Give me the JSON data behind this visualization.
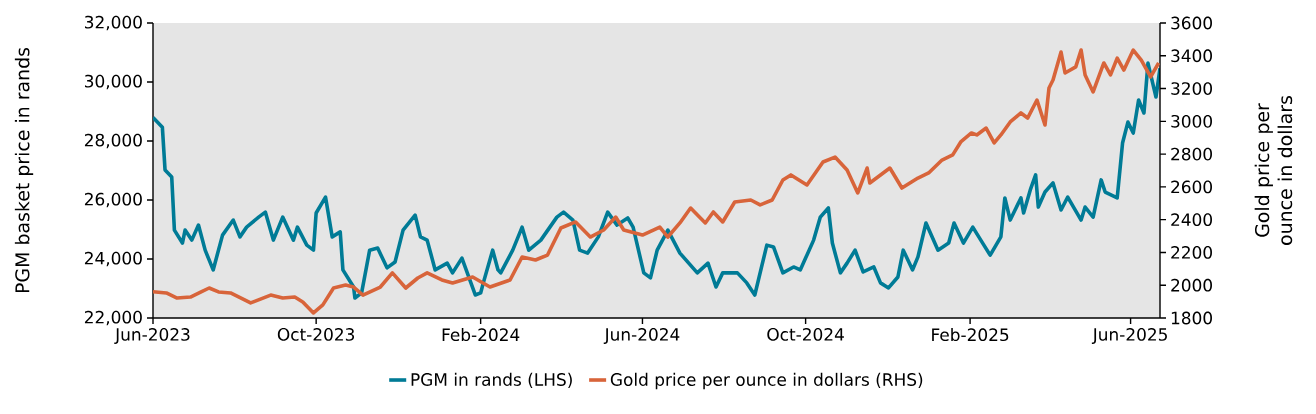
{
  "chart_data": {
    "type": "line",
    "ylabel": "PGM basket price in rands",
    "y2label": "Gold price per ounce in dollars",
    "xlim": [
      "2023-06-01",
      "2025-06-23"
    ],
    "xticks": [
      {
        "value": "2023-06-01",
        "label": "Jun-2023"
      },
      {
        "value": "2023-10-01",
        "label": "Oct-2023"
      },
      {
        "value": "2024-02-01",
        "label": "Feb-2024"
      },
      {
        "value": "2024-06-01",
        "label": "Jun-2024"
      },
      {
        "value": "2024-10-01",
        "label": "Oct-2024"
      },
      {
        "value": "2025-02-01",
        "label": "Feb-2025"
      },
      {
        "value": "2025-06-01",
        "label": "Jun-2025"
      }
    ],
    "ylim": [
      22000,
      32000
    ],
    "yticks": [
      {
        "value": 22000,
        "label": "22,000"
      },
      {
        "value": 24000,
        "label": "24,000"
      },
      {
        "value": 26000,
        "label": "26,000"
      },
      {
        "value": 28000,
        "label": "28,000"
      },
      {
        "value": 30000,
        "label": "30,000"
      },
      {
        "value": 32000,
        "label": "32,000"
      }
    ],
    "y2lim": [
      1800,
      3600
    ],
    "y2ticks": [
      1800,
      2000,
      2200,
      2400,
      2600,
      2800,
      3000,
      3200,
      3400,
      3600
    ],
    "legend": "bottom",
    "grid": false,
    "marker": "none",
    "line_style": "solid",
    "series": [
      {
        "name": "PGM in rands  (LHS)",
        "color": "#007b96",
        "axis": "y",
        "x": [
          "2023-06-01",
          "2023-06-08",
          "2023-06-10",
          "2023-06-15",
          "2023-06-17",
          "2023-06-23",
          "2023-06-25",
          "2023-06-30",
          "2023-07-05",
          "2023-07-10",
          "2023-07-16",
          "2023-07-23",
          "2023-07-31",
          "2023-08-05",
          "2023-08-10",
          "2023-08-19",
          "2023-08-24",
          "2023-08-30",
          "2023-09-06",
          "2023-09-14",
          "2023-09-17",
          "2023-09-24",
          "2023-09-29",
          "2023-10-01",
          "2023-10-08",
          "2023-10-13",
          "2023-10-19",
          "2023-10-21",
          "2023-10-29",
          "2023-10-30",
          "2023-11-04",
          "2023-11-10",
          "2023-11-16",
          "2023-11-23",
          "2023-11-29",
          "2023-12-05",
          "2023-12-14",
          "2023-12-18",
          "2023-12-23",
          "2023-12-29",
          "2024-01-07",
          "2024-01-11",
          "2024-01-18",
          "2024-01-28",
          "2024-02-01",
          "2024-02-03",
          "2024-02-10",
          "2024-02-14",
          "2024-02-16",
          "2024-02-25",
          "2024-03-03",
          "2024-03-08",
          "2024-03-17",
          "2024-03-29",
          "2024-04-03",
          "2024-04-10",
          "2024-04-15",
          "2024-04-21",
          "2024-04-29",
          "2024-05-06",
          "2024-05-13",
          "2024-05-21",
          "2024-05-25",
          "2024-06-02",
          "2024-06-07",
          "2024-06-12",
          "2024-06-20",
          "2024-06-29",
          "2024-07-12",
          "2024-07-20",
          "2024-07-26",
          "2024-07-31",
          "2024-08-11",
          "2024-08-18",
          "2024-08-24",
          "2024-09-02",
          "2024-09-07",
          "2024-09-14",
          "2024-09-22",
          "2024-09-27",
          "2024-10-01",
          "2024-10-07",
          "2024-10-12",
          "2024-10-18",
          "2024-10-21",
          "2024-10-27",
          "2024-11-01",
          "2024-11-07",
          "2024-11-13",
          "2024-11-21",
          "2024-11-26",
          "2024-12-02",
          "2024-12-09",
          "2024-12-13",
          "2024-12-20",
          "2024-12-24",
          "2024-12-30",
          "2025-01-08",
          "2025-01-16",
          "2025-01-20",
          "2025-01-27",
          "2025-02-03",
          "2025-02-09",
          "2025-02-16",
          "2025-02-24",
          "2025-02-27",
          "2025-03-03",
          "2025-03-11",
          "2025-03-13",
          "2025-03-18",
          "2025-03-22",
          "2025-03-24",
          "2025-03-29",
          "2025-04-04",
          "2025-04-10",
          "2025-04-15",
          "2025-04-25",
          "2025-04-28",
          "2025-05-04",
          "2025-05-10",
          "2025-05-13",
          "2025-05-22",
          "2025-05-26",
          "2025-05-30",
          "2025-06-03",
          "2025-06-07",
          "2025-06-11",
          "2025-06-14",
          "2025-06-20",
          "2025-06-23"
        ],
        "values": [
          28800,
          28470,
          27020,
          26780,
          24980,
          24540,
          24980,
          24640,
          25150,
          24300,
          23630,
          24810,
          25320,
          24750,
          25080,
          25420,
          25590,
          24640,
          25420,
          24640,
          25080,
          24470,
          24300,
          25560,
          26100,
          24750,
          24920,
          23630,
          23050,
          22680,
          22850,
          24300,
          24370,
          23700,
          23900,
          24980,
          25490,
          24750,
          24640,
          23630,
          23860,
          23530,
          24030,
          22780,
          22850,
          23190,
          24300,
          23630,
          23530,
          24300,
          25080,
          24300,
          24640,
          25420,
          25590,
          25320,
          24300,
          24200,
          24750,
          25590,
          25150,
          25390,
          25080,
          23530,
          23360,
          24300,
          24980,
          24200,
          23530,
          23860,
          23050,
          23530,
          23530,
          23190,
          22780,
          24470,
          24410,
          23530,
          23730,
          23630,
          24030,
          24640,
          25420,
          25730,
          24540,
          23530,
          23860,
          24300,
          23560,
          23730,
          23190,
          23020,
          23390,
          24300,
          23630,
          24070,
          25220,
          24300,
          24540,
          25220,
          24540,
          25080,
          24640,
          24130,
          24750,
          26070,
          25320,
          26070,
          25560,
          26340,
          26850,
          25760,
          26270,
          26580,
          25660,
          26100,
          25320,
          25760,
          25420,
          26680,
          26270,
          26070,
          27930,
          28640,
          28270,
          29390,
          28950,
          30640,
          29490,
          30470
        ]
      },
      {
        "name": "Gold price per ounce in dollars (RHS)",
        "color": "#d8643a",
        "axis": "y2",
        "x": [
          "2023-06-01",
          "2023-06-11",
          "2023-06-19",
          "2023-06-29",
          "2023-07-07",
          "2023-07-13",
          "2023-07-20",
          "2023-07-29",
          "2023-08-13",
          "2023-08-28",
          "2023-09-06",
          "2023-09-15",
          "2023-09-21",
          "2023-09-29",
          "2023-10-06",
          "2023-10-14",
          "2023-10-23",
          "2023-10-29",
          "2023-11-05",
          "2023-11-18",
          "2023-11-27",
          "2023-12-07",
          "2023-12-16",
          "2023-12-23",
          "2024-01-03",
          "2024-01-11",
          "2024-01-26",
          "2024-02-08",
          "2024-02-23",
          "2024-03-03",
          "2024-03-13",
          "2024-03-22",
          "2024-04-01",
          "2024-04-12",
          "2024-04-23",
          "2024-05-03",
          "2024-05-12",
          "2024-05-18",
          "2024-06-01",
          "2024-06-14",
          "2024-06-20",
          "2024-06-29",
          "2024-07-07",
          "2024-07-18",
          "2024-07-24",
          "2024-07-31",
          "2024-08-09",
          "2024-08-21",
          "2024-08-28",
          "2024-09-06",
          "2024-09-14",
          "2024-09-20",
          "2024-10-02",
          "2024-10-14",
          "2024-10-23",
          "2024-11-01",
          "2024-11-09",
          "2024-11-16",
          "2024-11-18",
          "2024-12-03",
          "2024-12-12",
          "2024-12-24",
          "2025-01-01",
          "2025-01-11",
          "2025-01-19",
          "2025-01-25",
          "2025-02-02",
          "2025-02-06",
          "2025-02-13",
          "2025-02-19",
          "2025-02-24",
          "2025-03-03",
          "2025-03-11",
          "2025-03-16",
          "2025-03-23",
          "2025-03-29",
          "2025-04-01",
          "2025-04-04",
          "2025-04-10",
          "2025-04-13",
          "2025-04-21",
          "2025-04-25",
          "2025-04-28",
          "2025-05-04",
          "2025-05-12",
          "2025-05-17",
          "2025-05-22",
          "2025-05-27",
          "2025-06-03",
          "2025-06-09",
          "2025-06-16",
          "2025-06-22"
        ],
        "values": [
          1960,
          1953,
          1922,
          1928,
          1959,
          1983,
          1959,
          1953,
          1892,
          1940,
          1922,
          1928,
          1898,
          1831,
          1880,
          1983,
          2001,
          1989,
          1940,
          1989,
          2075,
          1983,
          2044,
          2075,
          2032,
          2014,
          2050,
          1989,
          2032,
          2172,
          2154,
          2184,
          2349,
          2386,
          2294,
          2337,
          2416,
          2337,
          2306,
          2355,
          2294,
          2380,
          2471,
          2380,
          2447,
          2386,
          2508,
          2520,
          2490,
          2520,
          2642,
          2673,
          2612,
          2752,
          2782,
          2703,
          2563,
          2715,
          2624,
          2715,
          2593,
          2654,
          2685,
          2764,
          2795,
          2874,
          2929,
          2917,
          2959,
          2868,
          2917,
          2996,
          3051,
          3020,
          3130,
          2978,
          3203,
          3252,
          3423,
          3295,
          3332,
          3435,
          3283,
          3179,
          3356,
          3283,
          3386,
          3313,
          3435,
          3374,
          3271,
          3356
        ]
      }
    ]
  }
}
